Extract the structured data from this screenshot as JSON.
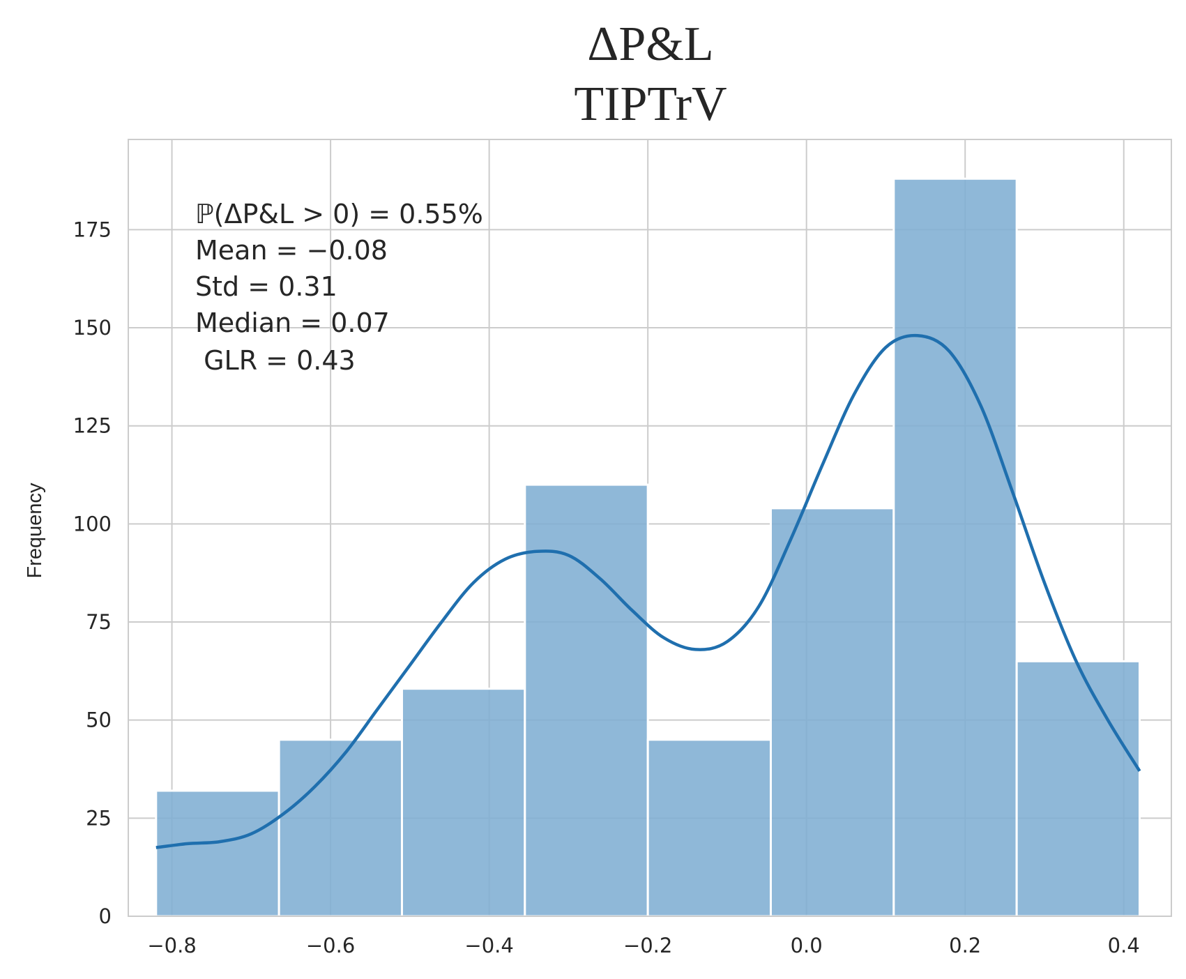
{
  "chart_data": {
    "type": "histogram",
    "title": "ΔP&L",
    "subtitle": "TIPTrV",
    "xlabel": "",
    "ylabel": "Frequency",
    "xlim": [
      -0.855,
      0.46
    ],
    "ylim": [
      0,
      198
    ],
    "xticks": [
      -0.8,
      -0.6,
      -0.4,
      -0.2,
      0.0,
      0.2,
      0.4
    ],
    "xtick_labels": [
      "−0.8",
      "−0.6",
      "−0.4",
      "−0.2",
      "0.0",
      "0.2",
      "0.4"
    ],
    "yticks": [
      0,
      25,
      50,
      75,
      100,
      125,
      150,
      175
    ],
    "ytick_labels": [
      "0",
      "25",
      "50",
      "75",
      "100",
      "125",
      "150",
      "175"
    ],
    "grid": true,
    "bar_color": "#7faed3",
    "kde_color": "#1f6fae",
    "bins": [
      {
        "x0": -0.82,
        "x1": -0.665,
        "count": 32
      },
      {
        "x0": -0.665,
        "x1": -0.51,
        "count": 45
      },
      {
        "x0": -0.51,
        "x1": -0.355,
        "count": 58
      },
      {
        "x0": -0.355,
        "x1": -0.2,
        "count": 110
      },
      {
        "x0": -0.2,
        "x1": -0.045,
        "count": 45
      },
      {
        "x0": -0.045,
        "x1": 0.11,
        "count": 104
      },
      {
        "x0": 0.11,
        "x1": 0.265,
        "count": 188
      },
      {
        "x0": 0.265,
        "x1": 0.42,
        "count": 65
      }
    ],
    "kde": {
      "x": [
        -0.82,
        -0.78,
        -0.74,
        -0.7,
        -0.66,
        -0.62,
        -0.58,
        -0.54,
        -0.5,
        -0.46,
        -0.42,
        -0.38,
        -0.34,
        -0.3,
        -0.26,
        -0.22,
        -0.18,
        -0.14,
        -0.1,
        -0.06,
        -0.02,
        0.02,
        0.06,
        0.1,
        0.14,
        0.18,
        0.22,
        0.26,
        0.3,
        0.34,
        0.38,
        0.42
      ],
      "y": [
        17.5,
        18.5,
        19,
        21,
        26,
        33,
        42,
        53,
        64,
        75,
        85,
        91,
        93,
        92,
        86,
        78,
        71,
        68,
        70,
        79,
        96,
        115,
        133,
        145,
        148,
        144,
        130,
        108,
        85,
        65,
        50,
        37
      ]
    },
    "annotations": [
      "ℙ(ΔP&L > 0) = 0.55%",
      "Mean = −0.08",
      "Std = 0.31",
      "Median = 0.07",
      " GLR = 0.43"
    ]
  }
}
